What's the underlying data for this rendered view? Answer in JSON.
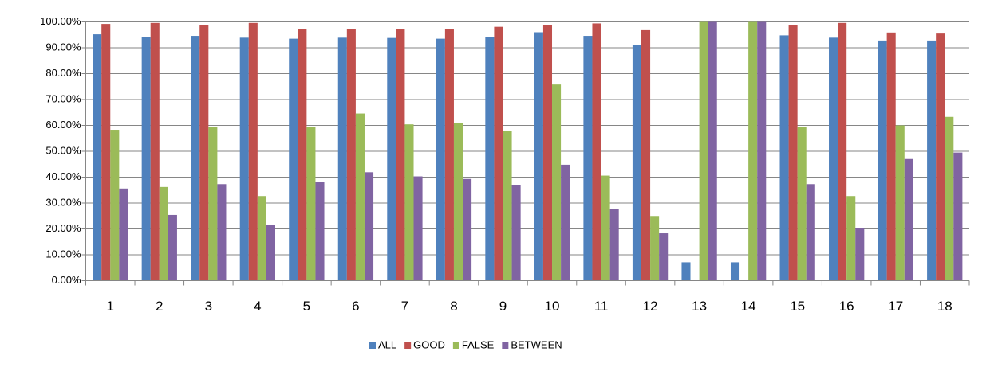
{
  "chart_data": {
    "type": "bar",
    "categories": [
      "1",
      "2",
      "3",
      "4",
      "5",
      "6",
      "7",
      "8",
      "9",
      "10",
      "11",
      "12",
      "13",
      "14",
      "15",
      "16",
      "17",
      "18"
    ],
    "series": [
      {
        "name": "ALL",
        "color": "#4f81bd",
        "values": [
          95.2,
          94.3,
          94.6,
          93.9,
          93.5,
          93.9,
          93.8,
          93.5,
          94.3,
          96,
          94.6,
          91.2,
          7.1,
          7.1,
          94.8,
          93.9,
          92.8,
          92.8
        ]
      },
      {
        "name": "GOOD",
        "color": "#c0504d",
        "values": [
          99.2,
          99.6,
          98.8,
          99.6,
          97.3,
          97.3,
          97.3,
          97.1,
          98.1,
          98.9,
          99.4,
          96.8,
          0,
          0,
          98.8,
          99.6,
          95.9,
          95.5
        ]
      },
      {
        "name": "FALSE",
        "color": "#9bbb59",
        "values": [
          58.3,
          36.2,
          59.3,
          32.7,
          59.3,
          64.6,
          60.4,
          60.8,
          57.7,
          75.8,
          40.6,
          25,
          100,
          100,
          59.3,
          32.7,
          60,
          63.3
        ]
      },
      {
        "name": "BETWEEN",
        "color": "#8064a2",
        "values": [
          35.6,
          25.4,
          37.3,
          21.4,
          38.1,
          41.9,
          40.3,
          39.3,
          37,
          44.8,
          27.8,
          18.3,
          100,
          100,
          37.3,
          20.4,
          47,
          49.5
        ]
      }
    ],
    "ylim": [
      0,
      100
    ],
    "yticks": [
      {
        "value": 0,
        "label": "0.00%"
      },
      {
        "value": 10,
        "label": "10.00%"
      },
      {
        "value": 20,
        "label": "20.00%"
      },
      {
        "value": 30,
        "label": "30.00%"
      },
      {
        "value": 40,
        "label": "40.00%"
      },
      {
        "value": 50,
        "label": "50.00%"
      },
      {
        "value": 60,
        "label": "60.00%"
      },
      {
        "value": 70,
        "label": "70.00%"
      },
      {
        "value": 80,
        "label": "80.00%"
      },
      {
        "value": 90,
        "label": "90.00%"
      },
      {
        "value": 100,
        "label": "100.00%"
      }
    ],
    "grid": true,
    "legend": "bottom"
  }
}
